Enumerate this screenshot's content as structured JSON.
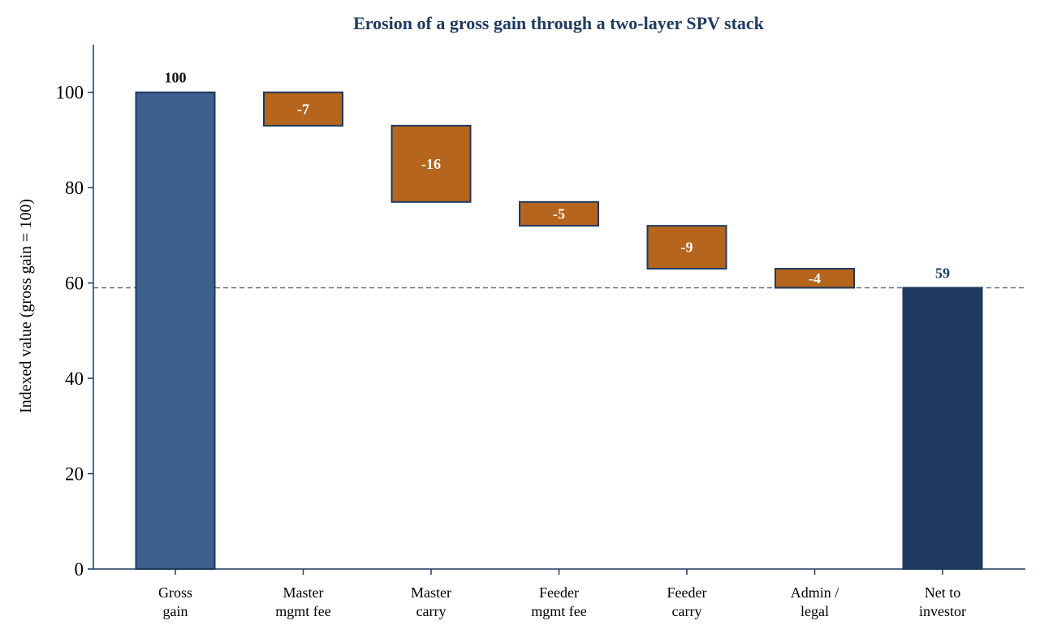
{
  "chart_data": {
    "type": "bar",
    "subtype": "waterfall",
    "title": "Erosion of a gross gain through a two-layer SPV stack",
    "ylabel": "Indexed value (gross gain = 100)",
    "xlabel": "",
    "ylim": [
      0,
      110
    ],
    "yticks": [
      0,
      20,
      40,
      60,
      80,
      100
    ],
    "grid": false,
    "categories": [
      [
        "Gross",
        "gain"
      ],
      [
        "Master",
        "mgmt fee"
      ],
      [
        "Master",
        "carry"
      ],
      [
        "Feeder",
        "mgmt fee"
      ],
      [
        "Feeder",
        "carry"
      ],
      [
        "Admin /",
        "legal"
      ],
      [
        "Net to",
        "investor"
      ]
    ],
    "bars": [
      {
        "kind": "total",
        "start": 0,
        "end": 100,
        "label": "100"
      },
      {
        "kind": "decrease",
        "start": 100,
        "end": 93,
        "label": "-7"
      },
      {
        "kind": "decrease",
        "start": 93,
        "end": 77,
        "label": "-16"
      },
      {
        "kind": "decrease",
        "start": 77,
        "end": 72,
        "label": "-5"
      },
      {
        "kind": "decrease",
        "start": 72,
        "end": 63,
        "label": "-9"
      },
      {
        "kind": "decrease",
        "start": 63,
        "end": 59,
        "label": "-4"
      },
      {
        "kind": "net",
        "start": 0,
        "end": 59,
        "label": "59"
      }
    ],
    "reference_line": {
      "y": 59,
      "style": "dashed"
    },
    "colors": {
      "total": "#3d618c",
      "decrease": "#b5651d",
      "net": "#1f3a5f",
      "edge": "#1f3a5f",
      "reference": "#6a6f85",
      "title": "#1f3a5f"
    }
  }
}
